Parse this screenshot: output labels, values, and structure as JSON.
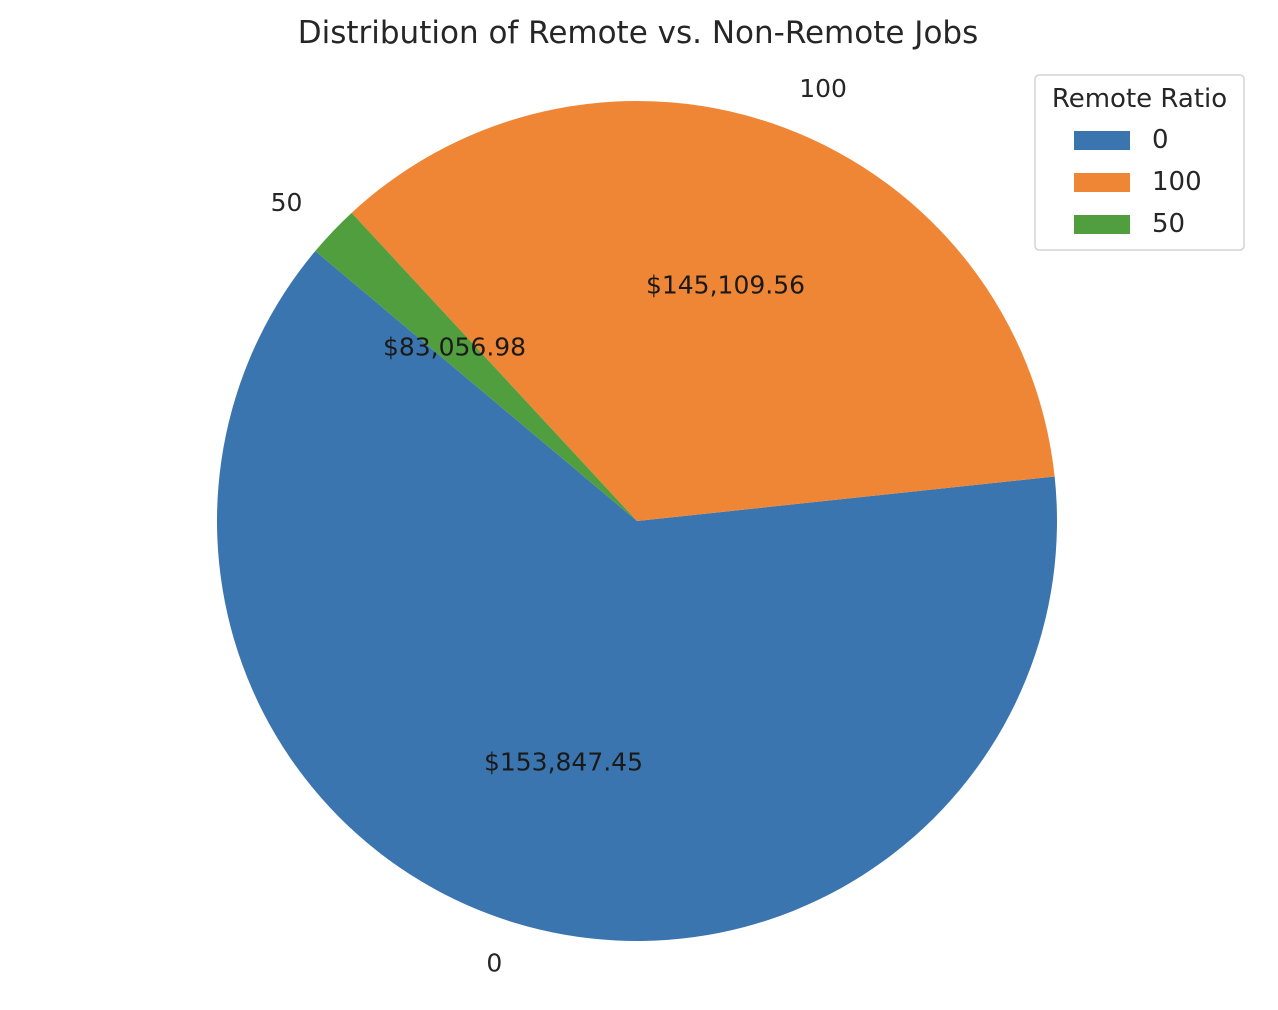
{
  "chart_data": {
    "type": "pie",
    "title": "Distribution of Remote vs. Non-Remote Jobs",
    "slices": [
      {
        "label": "0",
        "value": 153847.45,
        "value_label": "$153,847.45",
        "color": "#3b75af"
      },
      {
        "label": "100",
        "value": 145109.56,
        "value_label": "$145,109.56",
        "color": "#ef8636"
      },
      {
        "label": "50",
        "value": 83056.98,
        "value_label": "$83,056.98",
        "color": "#519e3e"
      }
    ],
    "slice_shares_percent": [
      62.8,
      35.2,
      2.0
    ],
    "start_angle_deg": 140,
    "direction": "counterclockwise",
    "legend": {
      "title": "Remote Ratio",
      "entries": [
        "0",
        "100",
        "50"
      ],
      "placement": "top-right"
    }
  }
}
